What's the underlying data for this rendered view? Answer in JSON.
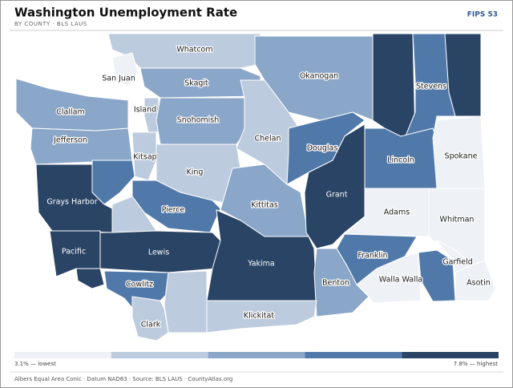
{
  "header": {
    "title": "Washington Unemployment Rate",
    "subtitle": "BY COUNTY · BLS LAUS",
    "badge": "FIPS 53"
  },
  "map": {
    "counties": [
      {
        "label": "Whatcom",
        "color": "#bccbde"
      },
      {
        "label": "San Juan",
        "color": "#eef1f6"
      },
      {
        "label": "Skagit",
        "color": "#8aa6c8"
      },
      {
        "label": "Okanogan",
        "color": "#8aa6c8"
      },
      {
        "color": "#2a4466"
      },
      {
        "label": "Stevens",
        "color": "#5079aa"
      },
      {
        "color": "#2a4466"
      },
      {
        "label": "Clallam",
        "color": "#8aa6c8"
      },
      {
        "label": "Jefferson",
        "color": "#8aa6c8"
      },
      {
        "label": "Island",
        "color": "#bccbde"
      },
      {
        "label": "Snohomish",
        "color": "#8aa6c8"
      },
      {
        "label": "Chelan",
        "color": "#bccbde"
      },
      {
        "label": "Douglas",
        "color": "#5079aa"
      },
      {
        "label": "Lincoln",
        "color": "#5079aa"
      },
      {
        "label": "Spokane",
        "color": "#eef1f6"
      },
      {
        "label": "Kitsap",
        "color": "#bccbde"
      },
      {
        "label": "King",
        "color": "#bccbde"
      },
      {
        "color": "#5079aa"
      },
      {
        "label": "Grays Harbor",
        "color": "#2a4466"
      },
      {
        "label": "Pierce",
        "color": "#5079aa"
      },
      {
        "color": "#bccbde"
      },
      {
        "label": "Kittitas",
        "color": "#8aa6c8"
      },
      {
        "label": "Grant",
        "color": "#2a4466"
      },
      {
        "label": "Adams",
        "color": "#eef1f6"
      },
      {
        "label": "Whitman",
        "color": "#eef1f6"
      },
      {
        "label": "Pacific",
        "color": "#2a4466"
      },
      {
        "color": "#2a4466"
      },
      {
        "label": "Lewis",
        "color": "#2a4466"
      },
      {
        "label": "Yakima",
        "color": "#2a4466"
      },
      {
        "label": "Franklin",
        "color": "#5079aa"
      },
      {
        "label": "Benton",
        "color": "#8aa6c8"
      },
      {
        "label": "Walla Walla",
        "color": "#eef1f6"
      },
      {
        "color": "#5079aa"
      },
      {
        "label": "Garfield",
        "color": "#eef1f6"
      },
      {
        "label": "Asotin",
        "color": "#eef1f6"
      },
      {
        "label": "Cowlitz",
        "color": "#5079aa"
      },
      {
        "color": "#bccbde"
      },
      {
        "label": "Klickitat",
        "color": "#bccbde"
      },
      {
        "label": "Clark",
        "color": "#bccbde"
      }
    ]
  },
  "legend": {
    "colors": [
      "#eef1f6",
      "#bccbde",
      "#8aa6c8",
      "#5079aa",
      "#2a4466"
    ],
    "low": "3.1% — lowest",
    "high": "7.8% — highest"
  },
  "footer": "Albers Equal Area Conic · Datum NAD83 · Source: BLS LAUS · CountyAtlas.org"
}
